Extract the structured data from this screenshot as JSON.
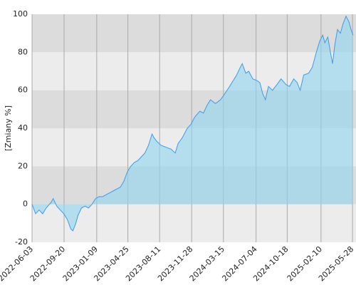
{
  "chart_data": {
    "type": "area",
    "y_label": "[Zmiany %]",
    "x": [
      "2022-06-03",
      "2022-06-15",
      "2022-06-27",
      "2022-07-09",
      "2022-07-21",
      "2022-08-07",
      "2022-08-14",
      "2022-08-26",
      "2022-09-07",
      "2022-09-19",
      "2022-10-01",
      "2022-10-13",
      "2022-10-20",
      "2022-10-30",
      "2022-11-06",
      "2022-11-18",
      "2022-11-30",
      "2022-12-12",
      "2022-12-24",
      "2023-01-05",
      "2023-01-17",
      "2023-01-29",
      "2023-02-10",
      "2023-02-22",
      "2023-03-06",
      "2023-03-18",
      "2023-03-30",
      "2023-04-11",
      "2023-04-23",
      "2023-05-05",
      "2023-05-17",
      "2023-05-29",
      "2023-06-10",
      "2023-06-22",
      "2023-07-04",
      "2023-07-16",
      "2023-07-23",
      "2023-08-02",
      "2023-08-16",
      "2023-09-02",
      "2023-09-19",
      "2023-10-03",
      "2023-10-13",
      "2023-10-27",
      "2023-11-13",
      "2023-11-25",
      "2023-12-09",
      "2023-12-26",
      "2024-01-07",
      "2024-01-19",
      "2024-01-31",
      "2024-02-17",
      "2024-03-05",
      "2024-03-19",
      "2024-04-05",
      "2024-04-17",
      "2024-04-29",
      "2024-05-11",
      "2024-05-18",
      "2024-05-30",
      "2024-06-09",
      "2024-06-23",
      "2024-07-08",
      "2024-07-17",
      "2024-07-27",
      "2024-08-05",
      "2024-08-15",
      "2024-08-29",
      "2024-09-13",
      "2024-09-27",
      "2024-10-14",
      "2024-10-26",
      "2024-11-09",
      "2024-11-21",
      "2024-12-01",
      "2024-12-13",
      "2024-12-30",
      "2025-01-11",
      "2025-01-25",
      "2025-02-06",
      "2025-02-16",
      "2025-02-23",
      "2025-03-05",
      "2025-03-14",
      "2025-03-21",
      "2025-03-29",
      "2025-04-07",
      "2025-04-17",
      "2025-04-26",
      "2025-05-06",
      "2025-05-16",
      "2025-05-23",
      "2025-05-30"
    ],
    "values": [
      0,
      -5,
      -3,
      -5,
      -2,
      1,
      3,
      -1,
      -3,
      -5,
      -8,
      -13,
      -14,
      -10,
      -6,
      -2,
      -1,
      -2,
      0,
      3,
      4,
      4,
      5,
      6,
      7,
      8,
      9,
      12,
      17,
      20,
      22,
      23,
      25,
      27,
      31,
      37,
      35,
      33,
      31,
      30,
      29,
      27,
      32,
      35,
      40,
      42,
      46,
      49,
      48,
      52,
      55,
      53,
      55,
      58,
      62,
      65,
      68,
      72,
      74,
      69,
      70,
      66,
      65,
      64,
      58,
      55,
      62,
      60,
      63,
      66,
      63,
      62,
      66,
      64,
      60,
      68,
      69,
      72,
      80,
      86,
      89,
      85,
      88,
      80,
      74,
      84,
      92,
      90,
      95,
      99,
      96,
      92,
      89
    ],
    "line_color": "#3d9be9",
    "fill_color": "#8fd3f0",
    "xlim": [
      "2022-06-03",
      "2025-06-09"
    ],
    "xticks": [
      "2022-06-03",
      "2022-09-20",
      "2023-01-09",
      "2023-04-25",
      "2023-08-11",
      "2023-11-28",
      "2024-03-15",
      "2024-07-04",
      "2024-10-18",
      "2025-02-10",
      "2025-05-28"
    ],
    "ylim": [
      -20,
      100
    ],
    "yticks": [
      -20,
      0,
      20,
      40,
      60,
      80,
      100
    ],
    "band_colors": [
      "#ececec",
      "#dcdcdc"
    ],
    "grid": true
  }
}
